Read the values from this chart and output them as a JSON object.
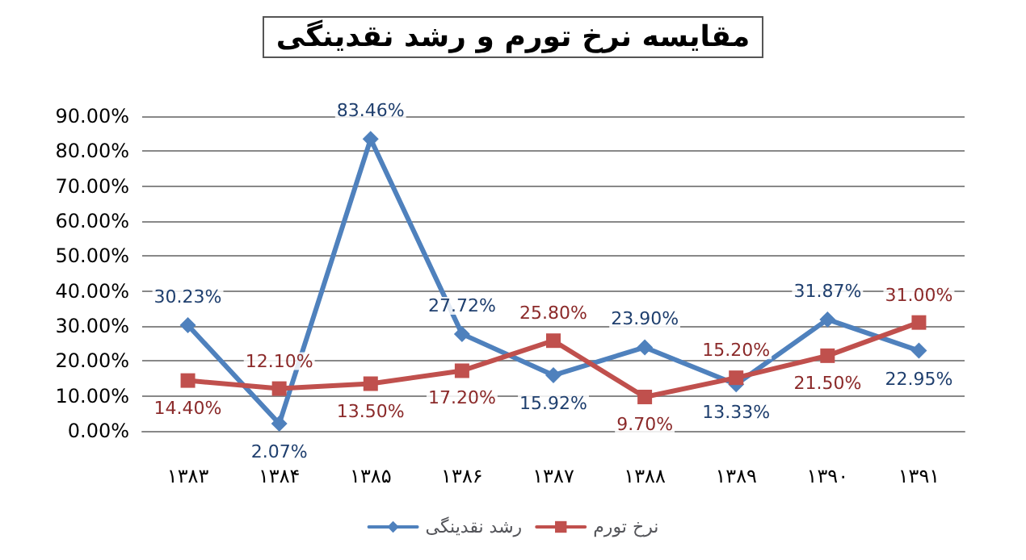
{
  "chart_data": {
    "type": "line",
    "title": "مقایسه نرخ تورم و رشد نقدینگی",
    "categories": [
      "۱۳۸۳",
      "۱۳۸۴",
      "۱۳۸۵",
      "۱۳۸۶",
      "۱۳۸۷",
      "۱۳۸۸",
      "۱۳۸۹",
      "۱۳۹۰",
      "۱۳۹۱"
    ],
    "series": [
      {
        "name": "رشد نقدینگی",
        "color": "#4f81bd",
        "marker": "diamond",
        "values": [
          30.23,
          2.07,
          83.46,
          27.72,
          15.92,
          23.9,
          13.33,
          31.87,
          22.95
        ],
        "value_labels": [
          "30.23%",
          "2.07%",
          "83.46%",
          "27.72%",
          "15.92%",
          "23.90%",
          "13.33%",
          "31.87%",
          "22.95%"
        ]
      },
      {
        "name": "نرخ تورم",
        "color": "#c0504d",
        "marker": "square",
        "values": [
          14.4,
          12.1,
          13.5,
          17.2,
          25.8,
          9.7,
          15.2,
          21.5,
          31.0
        ],
        "value_labels": [
          "14.40%",
          "12.10%",
          "13.50%",
          "17.20%",
          "25.80%",
          "9.70%",
          "15.20%",
          "21.50%",
          "31.00%"
        ]
      }
    ],
    "ylim": [
      0,
      90
    ],
    "yticks": [
      {
        "value": 0,
        "label": "0.00%"
      },
      {
        "value": 10,
        "label": "10.00%"
      },
      {
        "value": 20,
        "label": "20.00%"
      },
      {
        "value": 30,
        "label": "30.00%"
      },
      {
        "value": 40,
        "label": "40.00%"
      },
      {
        "value": 50,
        "label": "50.00%"
      },
      {
        "value": 60,
        "label": "60.00%"
      },
      {
        "value": 70,
        "label": "70.00%"
      },
      {
        "value": 80,
        "label": "80.00%"
      },
      {
        "value": 90,
        "label": "90.00%"
      }
    ],
    "grid": "y",
    "legend": "bottom",
    "line_style": "solid"
  }
}
